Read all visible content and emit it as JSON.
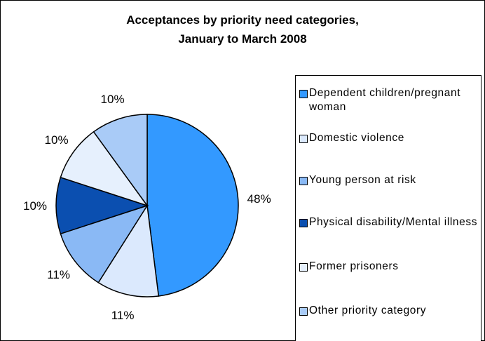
{
  "chart_data": {
    "type": "pie",
    "title": "Acceptances by priority need categories, January to March 2008",
    "title_lines": [
      "Acceptances by priority need categories,",
      "January to March 2008"
    ],
    "categories": [
      "Dependent children/pregnant woman",
      "Domestic violence",
      "Young person at risk",
      "Physical disability/Mental illness",
      "Former prisoners",
      "Other priority category"
    ],
    "slices": [
      {
        "label": "Dependent children/pregnant woman",
        "value": 48,
        "color": "#3399ff",
        "pct_label": "48%"
      },
      {
        "label": "Domestic violence",
        "value": 11,
        "color": "#dbe9fd",
        "pct_label": "11%"
      },
      {
        "label": "Young person at risk",
        "value": 11,
        "color": "#8ab9f5",
        "pct_label": "11%"
      },
      {
        "label": "Physical disability/Mental illness",
        "value": 10,
        "color": "#0b4fb0",
        "pct_label": "10%"
      },
      {
        "label": "Former prisoners",
        "value": 10,
        "color": "#e6f0fd",
        "pct_label": "10%"
      },
      {
        "label": "Other priority category",
        "value": 10,
        "color": "#a9cbf7",
        "pct_label": "10%"
      }
    ],
    "legend": {
      "position": "right",
      "entries": [
        {
          "text": "Dependent children/pregnant woman",
          "color": "#3399ff"
        },
        {
          "text": "Domestic violence",
          "color": "#dbe9fd"
        },
        {
          "text": "Young person at risk",
          "color": "#8ab9f5"
        },
        {
          "text": "Physical disability/Mental illness",
          "color": "#0b4fb0"
        },
        {
          "text": "Former prisoners",
          "color": "#e6f0fd"
        },
        {
          "text": "Other priority category",
          "color": "#a9cbf7"
        }
      ]
    }
  }
}
